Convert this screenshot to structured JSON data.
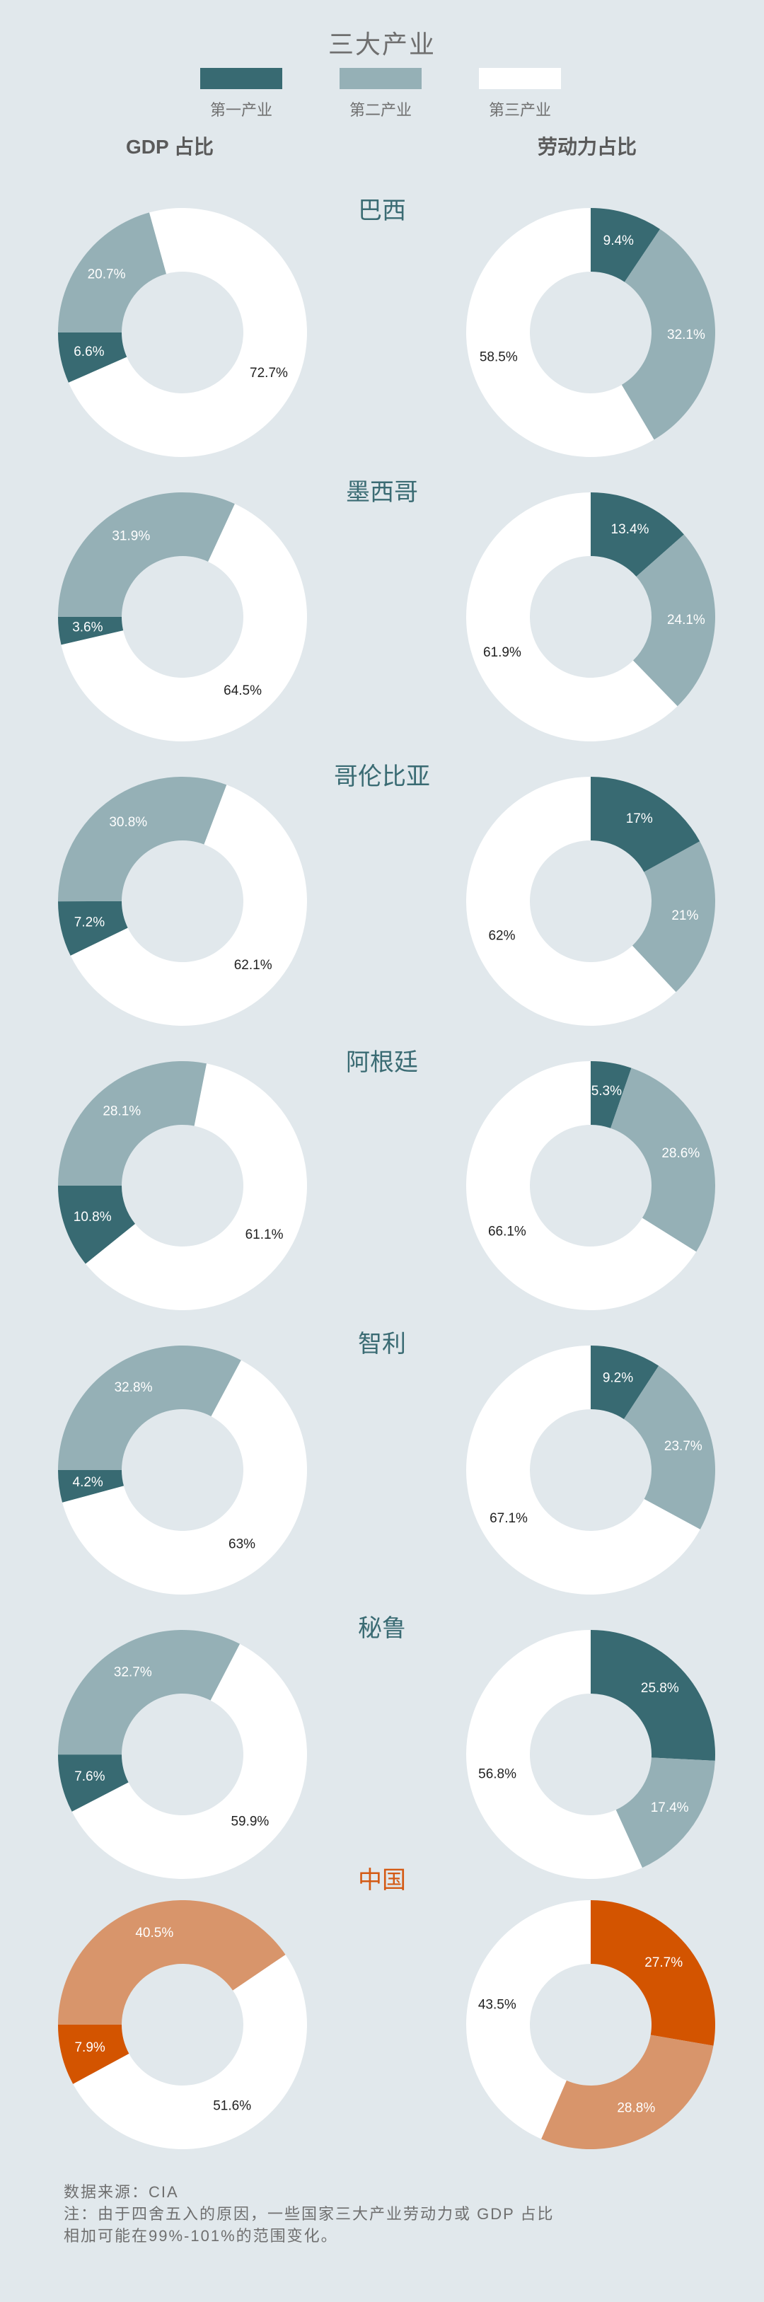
{
  "title": "三大产业",
  "legend": [
    {
      "label": "第一产业",
      "color": "#386a72"
    },
    {
      "label": "第二产业",
      "color": "#95b0b6"
    },
    {
      "label": "第三产业",
      "color": "#ffffff"
    }
  ],
  "columns": {
    "gdp": "GDP 占比",
    "labor": "劳动力占比"
  },
  "highlight_colors": [
    "#d35400",
    "#d8956b",
    "#ffffff"
  ],
  "chart_data": {
    "type": "pie",
    "series_names": [
      "第一产业",
      "第二产业",
      "第三产业"
    ],
    "countries": [
      {
        "name": "巴西",
        "gdp": [
          6.6,
          20.7,
          72.7
        ],
        "gdp_labels": [
          "6.6%",
          "20.7%",
          "72.7%"
        ],
        "labor": [
          9.4,
          32.1,
          58.5
        ],
        "labor_labels": [
          "9.4%",
          "32.1%",
          "58.5%"
        ]
      },
      {
        "name": "墨西哥",
        "gdp": [
          3.6,
          31.9,
          64.5
        ],
        "gdp_labels": [
          "3.6%",
          "31.9%",
          "64.5%"
        ],
        "labor": [
          13.4,
          24.1,
          61.9
        ],
        "labor_labels": [
          "13.4%",
          "24.1%",
          "61.9%"
        ]
      },
      {
        "name": "哥伦比亚",
        "gdp": [
          7.2,
          30.8,
          62.1
        ],
        "gdp_labels": [
          "7.2%",
          "30.8%",
          "62.1%"
        ],
        "labor": [
          17,
          21,
          62
        ],
        "labor_labels": [
          "17%",
          "21%",
          "62%"
        ]
      },
      {
        "name": "阿根廷",
        "gdp": [
          10.8,
          28.1,
          61.1
        ],
        "gdp_labels": [
          "10.8%",
          "28.1%",
          "61.1%"
        ],
        "labor": [
          5.3,
          28.6,
          66.1
        ],
        "labor_labels": [
          "5.3%",
          "28.6%",
          "66.1%"
        ]
      },
      {
        "name": "智利",
        "gdp": [
          4.2,
          32.8,
          63
        ],
        "gdp_labels": [
          "4.2%",
          "32.8%",
          "63%"
        ],
        "labor": [
          9.2,
          23.7,
          67.1
        ],
        "labor_labels": [
          "9.2%",
          "23.7%",
          "67.1%"
        ]
      },
      {
        "name": "秘鲁",
        "gdp": [
          7.6,
          32.7,
          59.9
        ],
        "gdp_labels": [
          "7.6%",
          "32.7%",
          "59.9%"
        ],
        "labor": [
          25.8,
          17.4,
          56.8
        ],
        "labor_labels": [
          "25.8%",
          "17.4%",
          "56.8%"
        ]
      },
      {
        "name": "中国",
        "highlight": true,
        "gdp": [
          7.9,
          40.5,
          51.6
        ],
        "gdp_labels": [
          "7.9%",
          "40.5%",
          "51.6%"
        ],
        "labor": [
          27.7,
          28.8,
          43.5
        ],
        "labor_labels": [
          "27.7%",
          "28.8%",
          "43.5%"
        ]
      }
    ]
  },
  "footer": {
    "source": "数据来源：CIA",
    "note1": "注：由于四舍五入的原因，一些国家三大产业劳动力或 GDP 占比",
    "note2": "相加可能在99%-101%的范围变化。"
  }
}
